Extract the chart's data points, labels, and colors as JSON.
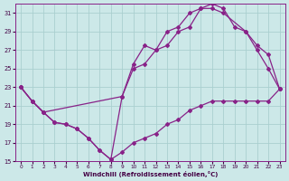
{
  "xlabel": "Windchill (Refroidissement éolien,°C)",
  "bg_color": "#cce8e8",
  "grid_color": "#aacfcf",
  "line_color": "#882288",
  "xlim_min": -0.5,
  "xlim_max": 23.5,
  "ylim_min": 15,
  "ylim_max": 32,
  "yticks": [
    15,
    17,
    19,
    21,
    23,
    25,
    27,
    29,
    31
  ],
  "xticks": [
    0,
    1,
    2,
    3,
    4,
    5,
    6,
    7,
    8,
    9,
    10,
    11,
    12,
    13,
    14,
    15,
    16,
    17,
    18,
    19,
    20,
    21,
    22,
    23
  ],
  "line1_x": [
    0,
    1,
    2,
    3,
    4,
    5,
    6,
    7,
    8,
    9,
    10,
    11,
    12,
    13,
    14,
    15,
    16,
    17,
    18,
    19,
    20,
    21,
    22,
    23
  ],
  "line1_y": [
    23.0,
    21.5,
    20.3,
    19.2,
    19.0,
    18.5,
    17.5,
    16.2,
    15.2,
    16.0,
    17.0,
    17.5,
    18.0,
    19.0,
    19.5,
    20.5,
    21.0,
    21.5,
    21.5,
    21.5,
    21.5,
    21.5,
    21.5,
    22.8
  ],
  "line2_x": [
    0,
    1,
    2,
    3,
    4,
    5,
    6,
    7,
    8,
    9,
    10,
    11,
    12,
    13,
    14,
    15,
    16,
    17,
    18,
    20,
    21,
    22,
    23
  ],
  "line2_y": [
    23.0,
    21.5,
    20.3,
    19.2,
    19.0,
    18.5,
    17.5,
    16.2,
    15.2,
    22.0,
    25.0,
    25.5,
    27.0,
    27.5,
    29.0,
    29.5,
    31.5,
    31.5,
    31.0,
    29.0,
    27.5,
    26.5,
    22.8
  ],
  "line3_x": [
    0,
    1,
    2,
    9,
    10,
    11,
    12,
    13,
    14,
    15,
    16,
    17,
    18,
    19,
    20,
    21,
    22,
    23
  ],
  "line3_y": [
    23.0,
    21.5,
    20.3,
    22.0,
    25.5,
    27.5,
    27.0,
    29.0,
    29.5,
    31.0,
    31.5,
    32.0,
    31.5,
    29.5,
    29.0,
    27.0,
    25.0,
    22.8
  ]
}
